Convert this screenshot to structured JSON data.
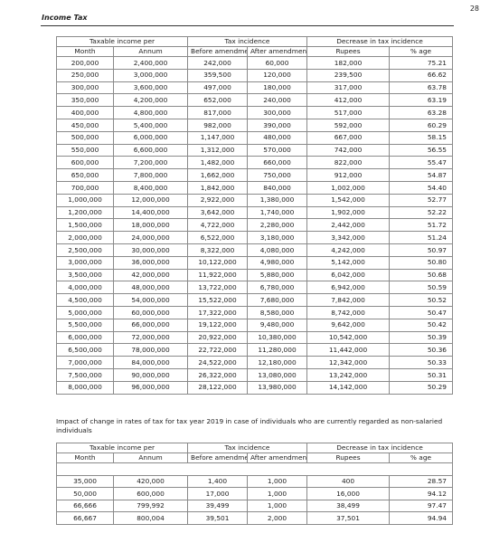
{
  "page_number": "28",
  "section_title": "Income Tax",
  "table1": {
    "headers": {
      "taxable_income": "Taxable income per",
      "tax_incidence": "Tax incidence",
      "decrease": "Decrease in tax incidence",
      "month": "Month",
      "annum": "Annum",
      "before": "Before amendment",
      "after": "After amendment",
      "rupees": "Rupees",
      "percent": "% age"
    },
    "rows": [
      [
        "200,000",
        "2,400,000",
        "242,000",
        "60,000",
        "182,000",
        "75.21"
      ],
      [
        "250,000",
        "3,000,000",
        "359,500",
        "120,000",
        "239,500",
        "66.62"
      ],
      [
        "300,000",
        "3,600,000",
        "497,000",
        "180,000",
        "317,000",
        "63.78"
      ],
      [
        "350,000",
        "4,200,000",
        "652,000",
        "240,000",
        "412,000",
        "63.19"
      ],
      [
        "400,000",
        "4,800,000",
        "817,000",
        "300,000",
        "517,000",
        "63.28"
      ],
      [
        "450,000",
        "5,400,000",
        "982,000",
        "390,000",
        "592,000",
        "60.29"
      ],
      [
        "500,000",
        "6,000,000",
        "1,147,000",
        "480,000",
        "667,000",
        "58.15"
      ],
      [
        "550,000",
        "6,600,000",
        "1,312,000",
        "570,000",
        "742,000",
        "56.55"
      ],
      [
        "600,000",
        "7,200,000",
        "1,482,000",
        "660,000",
        "822,000",
        "55.47"
      ],
      [
        "650,000",
        "7,800,000",
        "1,662,000",
        "750,000",
        "912,000",
        "54.87"
      ],
      [
        "700,000",
        "8,400,000",
        "1,842,000",
        "840,000",
        "1,002,000",
        "54.40"
      ],
      [
        "1,000,000",
        "12,000,000",
        "2,922,000",
        "1,380,000",
        "1,542,000",
        "52.77"
      ],
      [
        "1,200,000",
        "14,400,000",
        "3,642,000",
        "1,740,000",
        "1,902,000",
        "52.22"
      ],
      [
        "1,500,000",
        "18,000,000",
        "4,722,000",
        "2,280,000",
        "2,442,000",
        "51.72"
      ],
      [
        "2,000,000",
        "24,000,000",
        "6,522,000",
        "3,180,000",
        "3,342,000",
        "51.24"
      ],
      [
        "2,500,000",
        "30,000,000",
        "8,322,000",
        "4,080,000",
        "4,242,000",
        "50.97"
      ],
      [
        "3,000,000",
        "36,000,000",
        "10,122,000",
        "4,980,000",
        "5,142,000",
        "50.80"
      ],
      [
        "3,500,000",
        "42,000,000",
        "11,922,000",
        "5,880,000",
        "6,042,000",
        "50.68"
      ],
      [
        "4,000,000",
        "48,000,000",
        "13,722,000",
        "6,780,000",
        "6,942,000",
        "50.59"
      ],
      [
        "4,500,000",
        "54,000,000",
        "15,522,000",
        "7,680,000",
        "7,842,000",
        "50.52"
      ],
      [
        "5,000,000",
        "60,000,000",
        "17,322,000",
        "8,580,000",
        "8,742,000",
        "50.47"
      ],
      [
        "5,500,000",
        "66,000,000",
        "19,122,000",
        "9,480,000",
        "9,642,000",
        "50.42"
      ],
      [
        "6,000,000",
        "72,000,000",
        "20,922,000",
        "10,380,000",
        "10,542,000",
        "50.39"
      ],
      [
        "6,500,000",
        "78,000,000",
        "22,722,000",
        "11,280,000",
        "11,442,000",
        "50.36"
      ],
      [
        "7,000,000",
        "84,000,000",
        "24,522,000",
        "12,180,000",
        "12,342,000",
        "50.33"
      ],
      [
        "7,500,000",
        "90,000,000",
        "26,322,000",
        "13,080,000",
        "13,242,000",
        "50.31"
      ],
      [
        "8,000,000",
        "96,000,000",
        "28,122,000",
        "13,980,000",
        "14,142,000",
        "50.29"
      ]
    ]
  },
  "impact_note": "Impact of change in rates of tax for tax year 2019 in case of individuals who are currently regarded as non-salaried individuals",
  "table2": {
    "headers": {
      "taxable_income": "Taxable income per",
      "tax_incidence": "Tax incidence",
      "decrease": "Decrease in tax incidence",
      "month": "Month",
      "annum": "Annum",
      "before": "Before amendment",
      "after": "After amendment",
      "rupees": "Rupees",
      "percent": "% age"
    },
    "rows": [
      [
        "35,000",
        "420,000",
        "1,400",
        "1,000",
        "400",
        "28.57"
      ],
      [
        "50,000",
        "600,000",
        "17,000",
        "1,000",
        "16,000",
        "94.12"
      ],
      [
        "66,666",
        "799,992",
        "39,499",
        "1,000",
        "38,499",
        "97.47"
      ],
      [
        "66,667",
        "800,004",
        "39,501",
        "2,000",
        "37,501",
        "94.94"
      ]
    ]
  }
}
